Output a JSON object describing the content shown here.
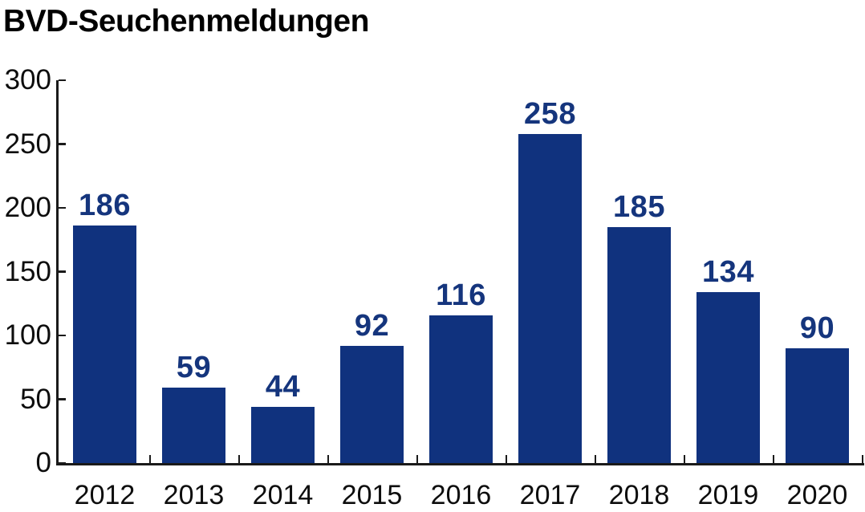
{
  "chart_data": {
    "type": "bar",
    "title": "BVD-Seuchenmeldungen",
    "categories": [
      "2012",
      "2013",
      "2014",
      "2015",
      "2016",
      "2017",
      "2018",
      "2019",
      "2020"
    ],
    "values": [
      186,
      59,
      44,
      92,
      116,
      258,
      185,
      134,
      90
    ],
    "xlabel": "",
    "ylabel": "",
    "ylim": [
      0,
      300
    ],
    "yticks": [
      0,
      50,
      100,
      150,
      200,
      250,
      300
    ],
    "grid": false,
    "legend": "none",
    "data_labels_shown": true,
    "colors": {
      "bar_fill": "#10327e",
      "value_label": "#15357d",
      "axis": "#1a1a1a",
      "tick_label": "#0d0d0d",
      "background": "#ffffff",
      "title": "#000000"
    }
  }
}
